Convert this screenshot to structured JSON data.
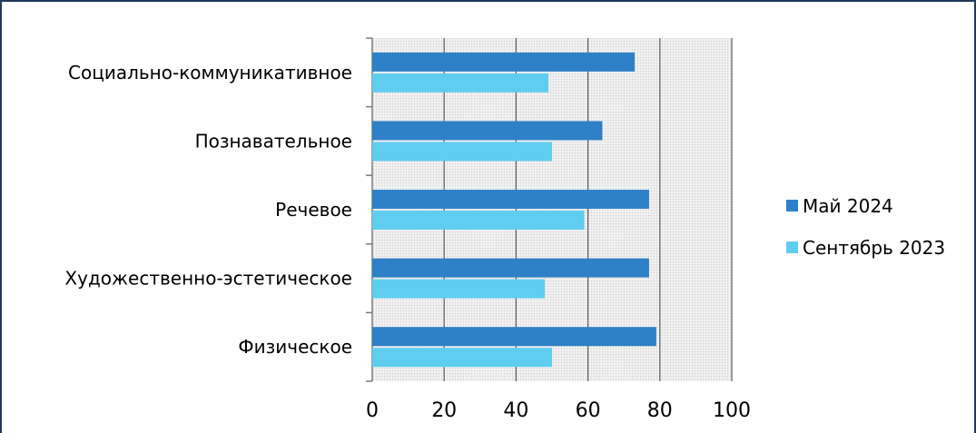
{
  "chart_data": {
    "type": "bar",
    "orientation": "horizontal",
    "categories": [
      "Социально-коммуникативное",
      "Познавательное",
      "Речевое",
      "Художественно-эстетическое",
      "Физическое"
    ],
    "series": [
      {
        "name": "Май 2024",
        "color": "#2e80c7",
        "values": [
          73,
          64,
          77,
          77,
          79
        ]
      },
      {
        "name": "Сентябрь 2023",
        "color": "#5fcdf0",
        "values": [
          49,
          50,
          59,
          48,
          50
        ]
      }
    ],
    "xlim": [
      0,
      100
    ],
    "xticks": [
      "0",
      "20",
      "40",
      "60",
      "80",
      "100"
    ],
    "grid": "vertical",
    "legend_position": "right",
    "plot_background": "hatched-gray"
  }
}
